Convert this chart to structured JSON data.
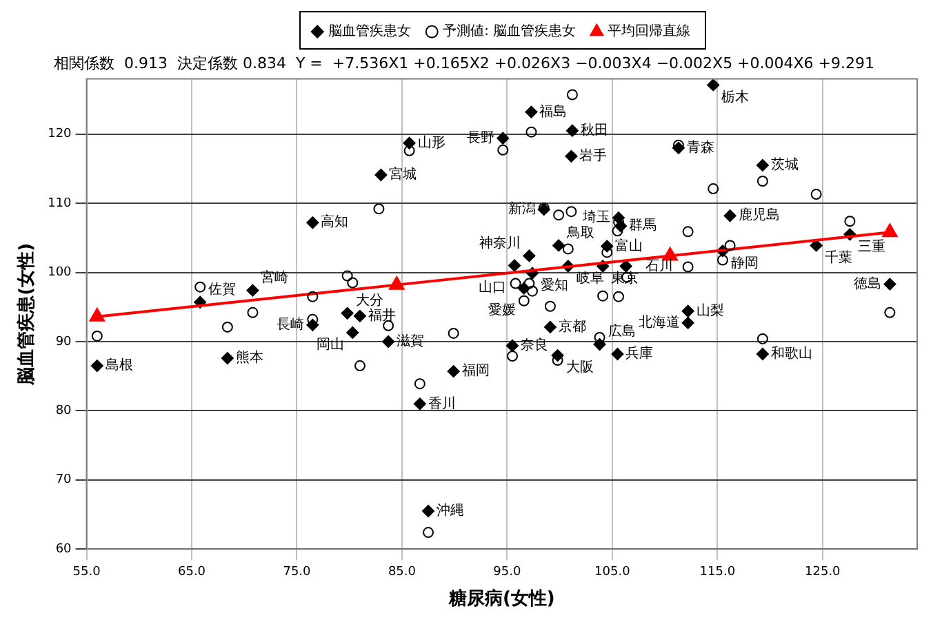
{
  "chart_data": {
    "type": "scatter",
    "subtitle": "相関係数  0.913  決定係数 0.834  Y =  +7.536X1 +0.165X2 +0.026X3 −0.003X4 −0.002X5 +0.004X6 +9.291",
    "xlabel": "糖尿病(女性)",
    "ylabel": "脳血管疾患(女性)",
    "xlim": [
      55,
      134
    ],
    "ylim": [
      60,
      128
    ],
    "xticks": [
      {
        "value": 55,
        "label": "55.0"
      },
      {
        "value": 65,
        "label": "65.0"
      },
      {
        "value": 75,
        "label": "75.0"
      },
      {
        "value": 85,
        "label": "85.0"
      },
      {
        "value": 95,
        "label": "95.0"
      },
      {
        "value": 105,
        "label": "105.0"
      },
      {
        "value": 115,
        "label": "115.0"
      },
      {
        "value": 125,
        "label": "125.0"
      }
    ],
    "yticks": [
      60,
      70,
      80,
      90,
      100,
      110,
      120
    ],
    "grid": true,
    "legend": "top",
    "series": [
      {
        "name": "脳血管疾患女",
        "marker": "diamond",
        "color": "#000000",
        "x": [
          56.0,
          65.8,
          70.8,
          68.4,
          76.5,
          76.5,
          79.8,
          81.0,
          80.3,
          83.0,
          85.7,
          97.3,
          94.6,
          101.2,
          101.1,
          98.5,
          105.6,
          105.8,
          99.9,
          104.5,
          97.1,
          95.7,
          97.4,
          100.8,
          104.1,
          106.3,
          96.6,
          99.1,
          95.5,
          99.8,
          103.8,
          105.5,
          83.7,
          89.9,
          86.7,
          87.5,
          114.6,
          111.3,
          119.3,
          116.2,
          127.6,
          124.4,
          115.5,
          131.4,
          112.2,
          112.2,
          119.3
        ],
        "values": [
          86.5,
          95.7,
          97.4,
          87.6,
          107.2,
          92.4,
          94.1,
          93.7,
          91.3,
          114.1,
          118.7,
          123.2,
          119.4,
          120.5,
          116.8,
          109.1,
          107.9,
          106.7,
          103.9,
          103.8,
          102.4,
          101.0,
          99.9,
          100.9,
          100.9,
          100.9,
          97.7,
          92.1,
          89.4,
          88.0,
          89.6,
          88.2,
          90.0,
          85.7,
          81.0,
          65.5,
          127.1,
          118.0,
          115.5,
          108.2,
          105.5,
          103.9,
          103.1,
          98.3,
          94.4,
          92.7,
          88.2
        ]
      },
      {
        "name": "予測値: 脳血管疾患女",
        "marker": "circle",
        "color": "#000000",
        "x": [
          56.0,
          65.8,
          68.4,
          70.8,
          76.5,
          76.5,
          79.8,
          80.3,
          81.0,
          82.8,
          83.7,
          85.7,
          86.7,
          87.5,
          89.9,
          94.6,
          97.3,
          101.2,
          98.5,
          99.9,
          101.1,
          105.6,
          105.5,
          100.8,
          104.5,
          97.1,
          95.8,
          97.4,
          96.6,
          99.1,
          104.1,
          105.6,
          106.4,
          103.8,
          95.5,
          99.8,
          111.3,
          114.6,
          119.3,
          124.4,
          112.2,
          127.6,
          116.2,
          115.5,
          112.2,
          131.4,
          119.3
        ],
        "values": [
          90.8,
          97.9,
          92.1,
          94.2,
          96.5,
          93.2,
          99.5,
          98.5,
          86.5,
          109.2,
          92.3,
          117.6,
          83.9,
          62.4,
          91.2,
          117.7,
          120.3,
          125.7,
          109.3,
          108.3,
          108.8,
          107.3,
          106.0,
          103.4,
          102.9,
          98.4,
          98.4,
          97.3,
          95.9,
          95.1,
          96.6,
          96.5,
          99.3,
          90.6,
          87.9,
          87.3,
          118.4,
          112.1,
          113.2,
          111.3,
          105.9,
          107.4,
          103.9,
          101.8,
          100.8,
          94.2,
          90.4
        ]
      },
      {
        "name": "平均回帰直線",
        "type": "line",
        "marker": "triangle",
        "color": "#ff0000",
        "x": [
          56.0,
          84.5,
          110.5,
          131.4
        ],
        "values": [
          93.6,
          98.2,
          102.4,
          105.8
        ]
      }
    ],
    "annotations": [
      {
        "text": "島根",
        "x": 56.0,
        "y": 86.5
      },
      {
        "text": "佐賀",
        "x": 65.8,
        "y": 95.7
      },
      {
        "text": "宮崎",
        "x": 70.8,
        "y": 97.4
      },
      {
        "text": "熊本",
        "x": 68.4,
        "y": 87.6
      },
      {
        "text": "高知",
        "x": 76.5,
        "y": 107.2
      },
      {
        "text": "長崎",
        "x": 76.5,
        "y": 92.4
      },
      {
        "text": "大分",
        "x": 79.8,
        "y": 94.1
      },
      {
        "text": "福井",
        "x": 81.0,
        "y": 93.7
      },
      {
        "text": "岡山",
        "x": 80.3,
        "y": 91.3
      },
      {
        "text": "宮城",
        "x": 83.0,
        "y": 114.1
      },
      {
        "text": "山形",
        "x": 85.7,
        "y": 118.7
      },
      {
        "text": "福島",
        "x": 97.3,
        "y": 123.2
      },
      {
        "text": "長野",
        "x": 94.6,
        "y": 119.4
      },
      {
        "text": "秋田",
        "x": 101.2,
        "y": 120.5
      },
      {
        "text": "岩手",
        "x": 101.1,
        "y": 116.8
      },
      {
        "text": "新潟",
        "x": 98.5,
        "y": 109.1
      },
      {
        "text": "埼玉",
        "x": 105.6,
        "y": 107.9
      },
      {
        "text": "群馬",
        "x": 105.8,
        "y": 106.7
      },
      {
        "text": "鳥取",
        "x": 99.9,
        "y": 103.9
      },
      {
        "text": "富山",
        "x": 104.5,
        "y": 103.8
      },
      {
        "text": "神奈川",
        "x": 97.1,
        "y": 102.4
      },
      {
        "text": "山口",
        "x": 95.7,
        "y": 101.0
      },
      {
        "text": "愛知",
        "x": 97.4,
        "y": 99.9
      },
      {
        "text": "岐阜",
        "x": 100.8,
        "y": 100.9
      },
      {
        "text": "東京",
        "x": 104.1,
        "y": 100.9
      },
      {
        "text": "石川",
        "x": 106.3,
        "y": 100.9
      },
      {
        "text": "愛媛",
        "x": 96.6,
        "y": 97.7
      },
      {
        "text": "京都",
        "x": 99.1,
        "y": 92.1
      },
      {
        "text": "奈良",
        "x": 95.5,
        "y": 89.4
      },
      {
        "text": "大阪",
        "x": 99.8,
        "y": 88.0
      },
      {
        "text": "広島",
        "x": 103.8,
        "y": 89.6
      },
      {
        "text": "兵庫",
        "x": 105.5,
        "y": 88.2
      },
      {
        "text": "滋賀",
        "x": 83.7,
        "y": 90.0
      },
      {
        "text": "福岡",
        "x": 89.9,
        "y": 85.7
      },
      {
        "text": "香川",
        "x": 86.7,
        "y": 81.0
      },
      {
        "text": "沖縄",
        "x": 87.5,
        "y": 65.5
      },
      {
        "text": "栃木",
        "x": 114.6,
        "y": 127.1
      },
      {
        "text": "青森",
        "x": 111.3,
        "y": 118.0
      },
      {
        "text": "茨城",
        "x": 119.3,
        "y": 115.5
      },
      {
        "text": "鹿児島",
        "x": 116.2,
        "y": 108.2
      },
      {
        "text": "三重",
        "x": 127.6,
        "y": 105.5
      },
      {
        "text": "千葉",
        "x": 124.4,
        "y": 103.9
      },
      {
        "text": "静岡",
        "x": 115.5,
        "y": 103.1
      },
      {
        "text": "徳島",
        "x": 131.4,
        "y": 98.3
      },
      {
        "text": "山梨",
        "x": 112.2,
        "y": 94.4
      },
      {
        "text": "北海道",
        "x": 112.2,
        "y": 92.7
      },
      {
        "text": "和歌山",
        "x": 119.3,
        "y": 88.2
      }
    ]
  }
}
